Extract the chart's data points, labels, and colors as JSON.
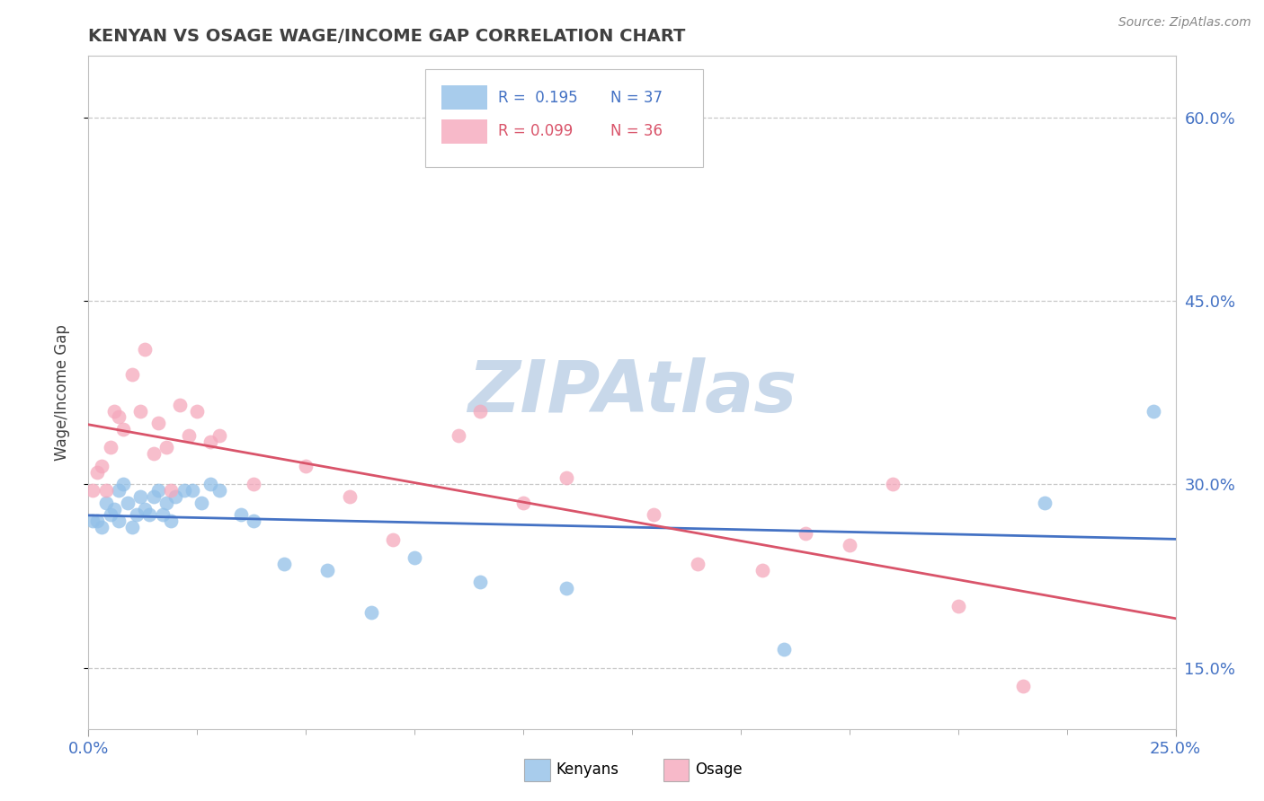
{
  "title": "KENYAN VS OSAGE WAGE/INCOME GAP CORRELATION CHART",
  "source_text": "Source: ZipAtlas.com",
  "ylabel": "Wage/Income Gap",
  "xlim": [
    0.0,
    0.25
  ],
  "ylim": [
    0.1,
    0.65
  ],
  "yticks_right": [
    0.15,
    0.3,
    0.45,
    0.6
  ],
  "ytick_right_labels": [
    "15.0%",
    "30.0%",
    "45.0%",
    "60.0%"
  ],
  "kenyan_color": "#92c0e8",
  "osage_color": "#f5a8bc",
  "kenyan_line_color": "#4472c4",
  "osage_line_color": "#d9546a",
  "watermark": "ZIPAtlas",
  "watermark_color": "#c8d8ea",
  "legend_R_kenyan": "R =  0.195",
  "legend_N_kenyan": "N = 37",
  "legend_R_osage": "R = 0.099",
  "legend_N_osage": "N = 36",
  "kenyan_x": [
    0.001,
    0.002,
    0.003,
    0.004,
    0.005,
    0.006,
    0.007,
    0.007,
    0.008,
    0.009,
    0.01,
    0.011,
    0.012,
    0.013,
    0.014,
    0.015,
    0.016,
    0.017,
    0.018,
    0.019,
    0.02,
    0.022,
    0.024,
    0.026,
    0.028,
    0.03,
    0.035,
    0.038,
    0.045,
    0.055,
    0.065,
    0.075,
    0.09,
    0.11,
    0.16,
    0.22,
    0.245
  ],
  "kenyan_y": [
    0.27,
    0.27,
    0.265,
    0.285,
    0.275,
    0.28,
    0.295,
    0.27,
    0.3,
    0.285,
    0.265,
    0.275,
    0.29,
    0.28,
    0.275,
    0.29,
    0.295,
    0.275,
    0.285,
    0.27,
    0.29,
    0.295,
    0.295,
    0.285,
    0.3,
    0.295,
    0.275,
    0.27,
    0.235,
    0.23,
    0.195,
    0.24,
    0.22,
    0.215,
    0.165,
    0.285,
    0.36
  ],
  "osage_x": [
    0.001,
    0.002,
    0.003,
    0.004,
    0.005,
    0.006,
    0.007,
    0.008,
    0.01,
    0.012,
    0.013,
    0.015,
    0.016,
    0.018,
    0.019,
    0.021,
    0.023,
    0.025,
    0.028,
    0.03,
    0.038,
    0.05,
    0.06,
    0.07,
    0.085,
    0.09,
    0.1,
    0.11,
    0.13,
    0.14,
    0.155,
    0.165,
    0.175,
    0.185,
    0.2,
    0.215
  ],
  "osage_y": [
    0.295,
    0.31,
    0.315,
    0.295,
    0.33,
    0.36,
    0.355,
    0.345,
    0.39,
    0.36,
    0.41,
    0.325,
    0.35,
    0.33,
    0.295,
    0.365,
    0.34,
    0.36,
    0.335,
    0.34,
    0.3,
    0.315,
    0.29,
    0.255,
    0.34,
    0.36,
    0.285,
    0.305,
    0.275,
    0.235,
    0.23,
    0.26,
    0.25,
    0.3,
    0.2,
    0.135
  ],
  "background_color": "#ffffff",
  "grid_color": "#c8c8c8",
  "title_color": "#404040",
  "axis_label_color": "#404040",
  "tick_color": "#4472c4"
}
